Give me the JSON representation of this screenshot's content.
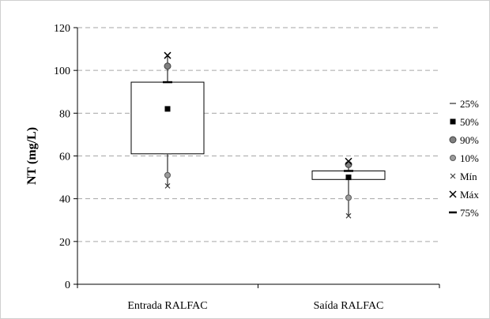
{
  "chart_data": {
    "type": "boxplot",
    "title": "",
    "xlabel": "",
    "ylabel": "NT (mg/L)",
    "ylim": [
      0,
      120
    ],
    "yticks": [
      0,
      20,
      40,
      60,
      80,
      100,
      120
    ],
    "grid": "horizontal-dashed",
    "legend_position": "right",
    "categories": [
      "Entrada RALFAC",
      "Saída RALFAC"
    ],
    "boxes": [
      {
        "p25": 61,
        "p50": 82,
        "p75": 94.5,
        "p10": 51,
        "p90": 102,
        "min": 46,
        "max": 107
      },
      {
        "p25": 49,
        "p50": 50,
        "p75": 53,
        "p10": 40.5,
        "p90": 56,
        "min": 32,
        "max": 57.5
      }
    ],
    "legend": [
      {
        "key": "p25",
        "label": "25%",
        "marker": "dash"
      },
      {
        "key": "p50",
        "label": "50%",
        "marker": "square"
      },
      {
        "key": "p90",
        "label": "90%",
        "marker": "circle-dark"
      },
      {
        "key": "p10",
        "label": "10%",
        "marker": "circle-light"
      },
      {
        "key": "min",
        "label": "Mín",
        "marker": "x-small"
      },
      {
        "key": "max",
        "label": "Máx",
        "marker": "x-large"
      },
      {
        "key": "p75",
        "label": "75%",
        "marker": "bar-thick"
      }
    ]
  }
}
